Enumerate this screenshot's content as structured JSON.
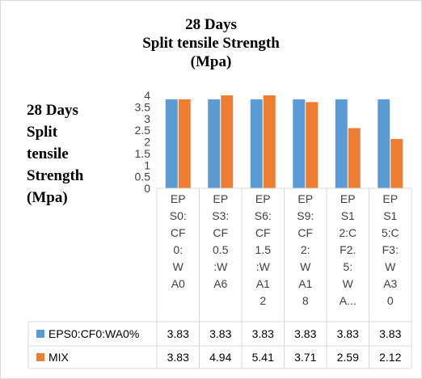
{
  "chart_data": {
    "type": "bar",
    "title_lines": [
      "28 Days",
      "Split tensile Strength",
      "(Mpa)"
    ],
    "ylabel_lines": [
      "28 Days",
      "Split",
      "tensile",
      "Strength",
      "(Mpa)"
    ],
    "ylim": [
      0,
      4
    ],
    "yticks": [
      "0",
      "0.5",
      "1",
      "1.5",
      "2",
      "2.5",
      "3",
      "3.5",
      "4"
    ],
    "categories": [
      "EPS0:CF0:WA0",
      "EPS3:CF0.5:WA6",
      "EPS6:CF1.5:WA12",
      "EPS9:CF2:WA18",
      "EPS12:CF2.5:WA...",
      "EPS15:CF3:WA30"
    ],
    "category_label_lines": [
      [
        "EP",
        "S0:",
        "CF",
        "0:",
        "W",
        "A0"
      ],
      [
        "EP",
        "S3:",
        "CF",
        "0.5",
        ":W",
        "A6"
      ],
      [
        "EP",
        "S6:",
        "CF",
        "1.5",
        ":W",
        "A1",
        "2"
      ],
      [
        "EP",
        "S9:",
        "CF",
        "2:",
        "W",
        "A1",
        "8"
      ],
      [
        "EP",
        "S1",
        "2:C",
        "F2.",
        "5:",
        "W",
        "A..."
      ],
      [
        "EP",
        "S1",
        "5:C",
        "F3:",
        "W",
        "A3",
        "0"
      ]
    ],
    "series": [
      {
        "name": "EPS0:CF0:WA0%",
        "color": "#5b9bd5",
        "values": [
          3.83,
          3.83,
          3.83,
          3.83,
          3.83,
          3.83
        ],
        "value_labels": [
          "3.83",
          "3.83",
          "3.83",
          "3.83",
          "3.83",
          "3.83"
        ]
      },
      {
        "name": "MIX",
        "color": "#ed7d31",
        "values": [
          3.83,
          4.94,
          5.41,
          3.71,
          2.59,
          2.12
        ],
        "value_labels": [
          "3.83",
          "4.94",
          "5.41",
          "3.71",
          "2.59",
          "2.12"
        ]
      }
    ],
    "grid": false,
    "legend": "data-table"
  }
}
